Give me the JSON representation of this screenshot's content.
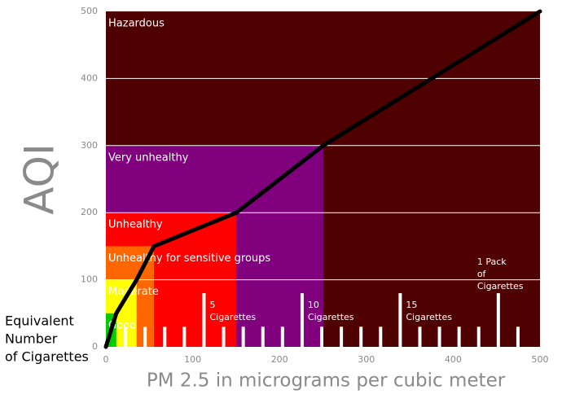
{
  "chart_data": {
    "type": "line",
    "xlabel": "PM 2.5 in micrograms per cubic meter",
    "ylabel": "AQI",
    "xlim": [
      0,
      500
    ],
    "ylim": [
      0,
      500
    ],
    "xticks": [
      0,
      100,
      200,
      300,
      400,
      500
    ],
    "yticks": [
      0,
      100,
      200,
      300,
      400,
      500
    ],
    "grid": true,
    "bands": [
      {
        "name": "Hazardous",
        "color": "#4f0000",
        "x_end": 500,
        "y_end": 500
      },
      {
        "name": "Very unhealthy",
        "color": "#80007e",
        "x_end": 250.4,
        "y_end": 300
      },
      {
        "name": "Unhealthy",
        "color": "#ff0000",
        "x_end": 150.4,
        "y_end": 200
      },
      {
        "name": "Unhealthy for sensitive groups",
        "color": "#ff6600",
        "x_end": 55.4,
        "y_end": 150
      },
      {
        "name": "Moderate",
        "color": "#ffff00",
        "x_end": 35.4,
        "y_end": 100
      },
      {
        "name": "Good",
        "color": "#00cc00",
        "x_end": 12,
        "y_end": 50
      }
    ],
    "series": [
      {
        "name": "AQI",
        "color": "#000000",
        "x": [
          0,
          12,
          35.4,
          55.4,
          150.4,
          250.4,
          500
        ],
        "values": [
          0,
          50,
          100,
          150,
          200,
          300,
          500
        ]
      }
    ],
    "cigarette_bars": {
      "color": "#ffffff",
      "x": [
        22.6,
        45.2,
        67.8,
        90.4,
        113,
        135.6,
        158.2,
        180.8,
        203.4,
        226,
        248.6,
        271.2,
        293.8,
        316.4,
        339,
        361.6,
        384.2,
        406.8,
        429.4,
        452,
        474.6
      ],
      "values": [
        30,
        30,
        30,
        30,
        80,
        30,
        30,
        30,
        30,
        80,
        30,
        30,
        30,
        30,
        80,
        30,
        30,
        30,
        30,
        80,
        30
      ]
    },
    "cigarette_labels": [
      [
        "5",
        "Cigarettes"
      ],
      [
        "10",
        "Cigarettes"
      ],
      [
        "15",
        "Cigarettes"
      ],
      [
        "1 Pack",
        "of",
        "Cigarettes"
      ]
    ],
    "cigarette_axis_label": [
      "Equivalent",
      "Number",
      "of Cigarettes"
    ]
  }
}
